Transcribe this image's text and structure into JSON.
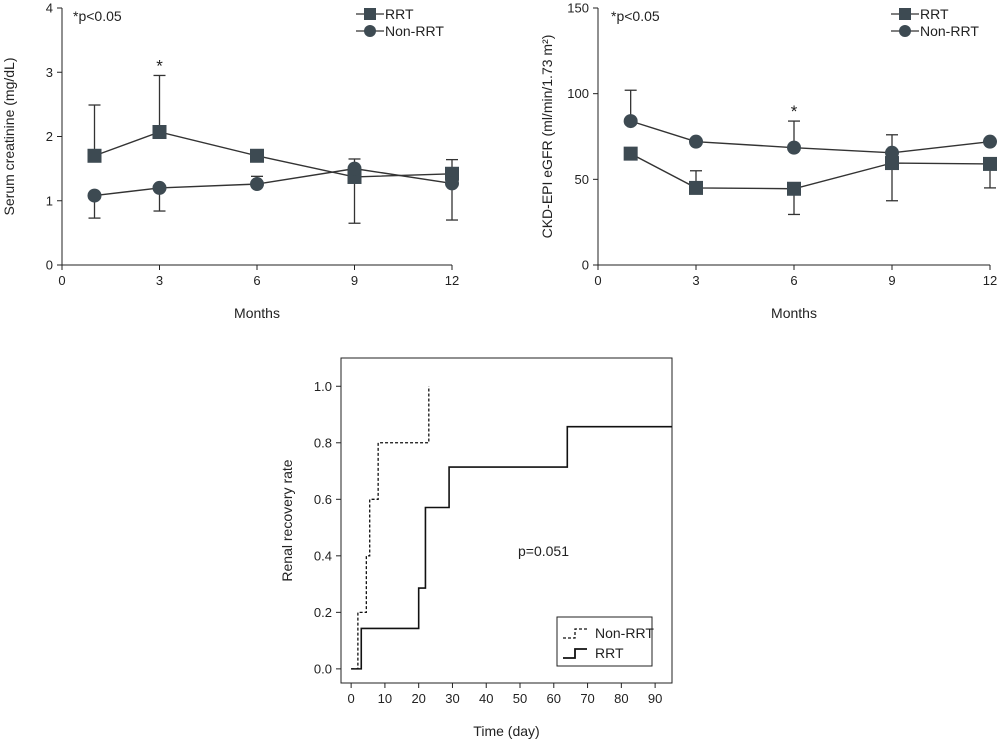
{
  "colors": {
    "marker": "#3d4a52",
    "line": "#333333",
    "axis": "#222222"
  },
  "chart_data": [
    {
      "type": "line",
      "xlabel": "Months",
      "ylabel": "Serum creatinine (mg/dL)",
      "xlim": [
        0,
        12
      ],
      "ylim": [
        0,
        4
      ],
      "xticks": [
        0,
        3,
        6,
        9,
        12
      ],
      "yticks": [
        0,
        1,
        2,
        3,
        4
      ],
      "annotation": "*p<0.05",
      "legend_position": "top-right",
      "series": [
        {
          "name": "RRT",
          "marker": "square",
          "x": [
            1,
            3,
            6,
            9,
            12
          ],
          "y": [
            1.7,
            2.07,
            1.7,
            1.37,
            1.42
          ],
          "error_up": [
            0.79,
            0.88,
            0.0,
            0.0,
            0.22
          ],
          "error_down": [
            0.0,
            0.0,
            0.0,
            0.72,
            0.0
          ]
        },
        {
          "name": "Non-RRT",
          "marker": "circle",
          "x": [
            1,
            3,
            6,
            9,
            12
          ],
          "y": [
            1.08,
            1.2,
            1.26,
            1.5,
            1.27
          ],
          "error_up": [
            0.0,
            0.0,
            0.12,
            0.15,
            0.0
          ],
          "error_down": [
            0.35,
            0.36,
            0.0,
            0.0,
            0.57
          ]
        }
      ],
      "significance": [
        {
          "x": 3,
          "label": "*"
        }
      ]
    },
    {
      "type": "line",
      "xlabel": "Months",
      "ylabel": "CKD-EPI eGFR (ml/min/1.73 m²)",
      "xlim": [
        0,
        12
      ],
      "ylim": [
        0,
        150
      ],
      "xticks": [
        0,
        3,
        6,
        9,
        12
      ],
      "yticks": [
        0,
        50,
        100,
        150
      ],
      "annotation": "*p<0.05",
      "legend_position": "top-right",
      "series": [
        {
          "name": "RRT",
          "marker": "square",
          "x": [
            1,
            3,
            6,
            9,
            12
          ],
          "y": [
            65,
            45,
            44.5,
            59.5,
            59
          ],
          "error_up": [
            0,
            10,
            0,
            0,
            0
          ],
          "error_down": [
            0,
            0,
            15,
            22,
            14
          ]
        },
        {
          "name": "Non-RRT",
          "marker": "circle",
          "x": [
            1,
            3,
            6,
            9,
            12
          ],
          "y": [
            84,
            72,
            68.5,
            65.5,
            72
          ],
          "error_up": [
            18,
            0,
            15.5,
            10.5,
            0
          ],
          "error_down": [
            0,
            0,
            0,
            0,
            0
          ]
        }
      ],
      "significance": [
        {
          "x": 6,
          "label": "*"
        }
      ]
    },
    {
      "type": "line",
      "subtype": "step",
      "xlabel": "Time (day)",
      "ylabel": "Renal recovery rate",
      "xlim": [
        -3,
        95
      ],
      "ylim": [
        -0.05,
        1.1
      ],
      "xticks": [
        0,
        10,
        20,
        30,
        40,
        50,
        60,
        70,
        80,
        90
      ],
      "yticks": [
        0.0,
        0.2,
        0.4,
        0.6,
        0.8,
        1.0
      ],
      "ytick_labels": [
        "0.0",
        "0.2",
        "0.4",
        "0.6",
        "0.8",
        "1.0"
      ],
      "annotation": "p=0.051",
      "legend_position": "bottom-right",
      "series": [
        {
          "name": "Non-RRT",
          "style": "dashed",
          "x": [
            0,
            2,
            2,
            4.5,
            4.5,
            5.5,
            5.5,
            8,
            8,
            23,
            23
          ],
          "y": [
            0,
            0,
            0.2,
            0.2,
            0.4,
            0.4,
            0.6,
            0.6,
            0.8,
            0.8,
            1.0
          ]
        },
        {
          "name": "RRT",
          "style": "solid",
          "x": [
            0,
            3,
            3,
            20,
            20,
            22,
            22,
            29,
            29,
            64,
            64,
            95
          ],
          "y": [
            0,
            0,
            0.143,
            0.143,
            0.286,
            0.286,
            0.571,
            0.571,
            0.714,
            0.714,
            0.857,
            0.857
          ]
        }
      ]
    }
  ]
}
